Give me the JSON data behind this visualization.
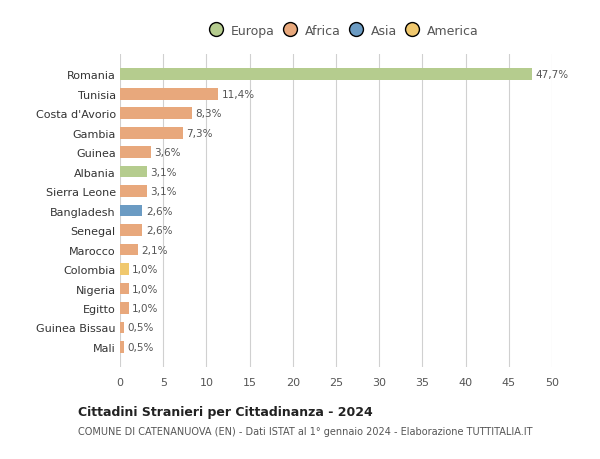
{
  "countries": [
    "Romania",
    "Tunisia",
    "Costa d'Avorio",
    "Gambia",
    "Guinea",
    "Albania",
    "Sierra Leone",
    "Bangladesh",
    "Senegal",
    "Marocco",
    "Colombia",
    "Nigeria",
    "Egitto",
    "Guinea Bissau",
    "Mali"
  ],
  "values": [
    47.7,
    11.4,
    8.3,
    7.3,
    3.6,
    3.1,
    3.1,
    2.6,
    2.6,
    2.1,
    1.0,
    1.0,
    1.0,
    0.5,
    0.5
  ],
  "labels": [
    "47,7%",
    "11,4%",
    "8,3%",
    "7,3%",
    "3,6%",
    "3,1%",
    "3,1%",
    "2,6%",
    "2,6%",
    "2,1%",
    "1,0%",
    "1,0%",
    "1,0%",
    "0,5%",
    "0,5%"
  ],
  "colors": [
    "#b5cc8e",
    "#e8a87c",
    "#e8a87c",
    "#e8a87c",
    "#e8a87c",
    "#b5cc8e",
    "#e8a87c",
    "#6b9bc3",
    "#e8a87c",
    "#e8a87c",
    "#f0c86e",
    "#e8a87c",
    "#e8a87c",
    "#e8a87c",
    "#e8a87c"
  ],
  "legend_labels": [
    "Europa",
    "Africa",
    "Asia",
    "America"
  ],
  "legend_colors": [
    "#b5cc8e",
    "#e8a87c",
    "#6b9bc3",
    "#f0c86e"
  ],
  "xlim": [
    0,
    50
  ],
  "xticks": [
    0,
    5,
    10,
    15,
    20,
    25,
    30,
    35,
    40,
    45,
    50
  ],
  "title": "Cittadini Stranieri per Cittadinanza - 2024",
  "subtitle": "COMUNE DI CATENANUOVA (EN) - Dati ISTAT al 1° gennaio 2024 - Elaborazione TUTTITALIA.IT",
  "background_color": "#ffffff",
  "grid_color": "#d0d0d0"
}
